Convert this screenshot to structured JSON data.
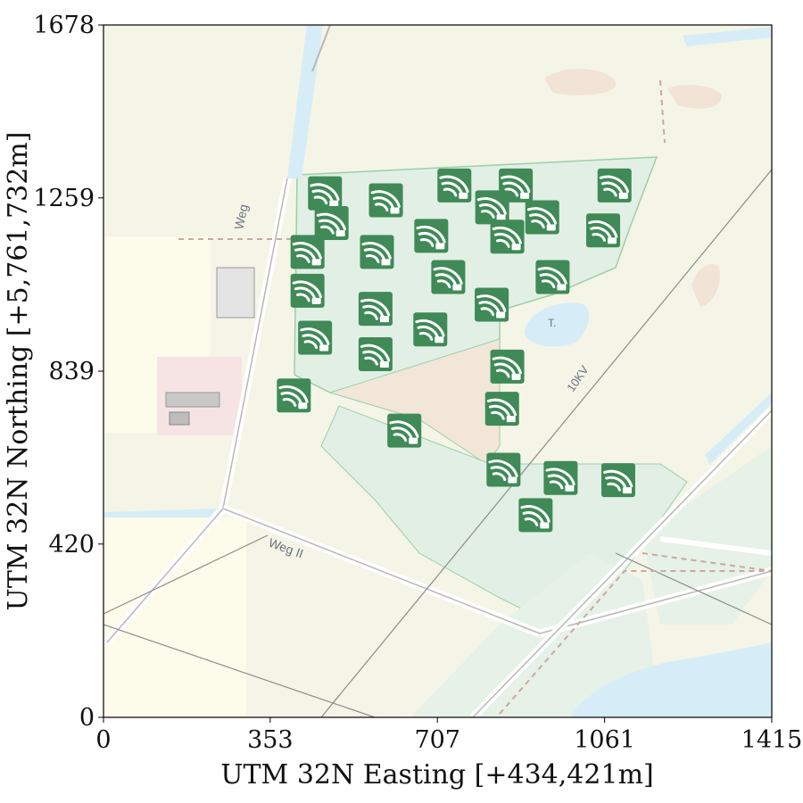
{
  "axes": {
    "xlabel": "UTM 32N Easting [+434,421m]",
    "ylabel": "UTM 32N Northing [+5,761,732m]",
    "xlim": [
      0,
      1415
    ],
    "ylim": [
      0,
      1678
    ],
    "xticks": [
      0,
      353,
      707,
      1061,
      1415
    ],
    "yticks": [
      0,
      420,
      839,
      1259,
      1678
    ],
    "xtick_labels": [
      "0",
      "353",
      "707",
      "1061",
      "1415"
    ],
    "ytick_labels": [
      "0",
      "420",
      "839",
      "1259",
      "1678"
    ]
  },
  "map_labels": {
    "weg": "Weg",
    "weg_ii": "Weg II",
    "kv": "10KV",
    "t": "T."
  },
  "marker_icon": "wind-turbine-icon",
  "colors": {
    "marker": "#3f8a57",
    "map_bg": "#f4f5e6",
    "green_area": "#e2efe4",
    "water": "#d6edf7",
    "tan_area": "#f1e6d8"
  },
  "chart_data": {
    "type": "scatter",
    "grid": false,
    "legend": "none",
    "series": [
      {
        "marker": "wind-turbine-icon",
        "points": [
          [
            469,
            1270
          ],
          [
            598,
            1253
          ],
          [
            743,
            1289
          ],
          [
            873,
            1289
          ],
          [
            1082,
            1289
          ],
          [
            823,
            1236
          ],
          [
            929,
            1212
          ],
          [
            483,
            1198
          ],
          [
            694,
            1167
          ],
          [
            855,
            1165
          ],
          [
            1058,
            1180
          ],
          [
            432,
            1128
          ],
          [
            579,
            1128
          ],
          [
            730,
            1067
          ],
          [
            951,
            1067
          ],
          [
            432,
            1034
          ],
          [
            576,
            990
          ],
          [
            822,
            1000
          ],
          [
            692,
            940
          ],
          [
            448,
            920
          ],
          [
            576,
            880
          ],
          [
            855,
            850
          ],
          [
            403,
            780
          ],
          [
            844,
            748
          ],
          [
            637,
            695
          ],
          [
            847,
            600
          ],
          [
            968,
            580
          ],
          [
            1090,
            575
          ],
          [
            915,
            490
          ]
        ]
      }
    ]
  }
}
